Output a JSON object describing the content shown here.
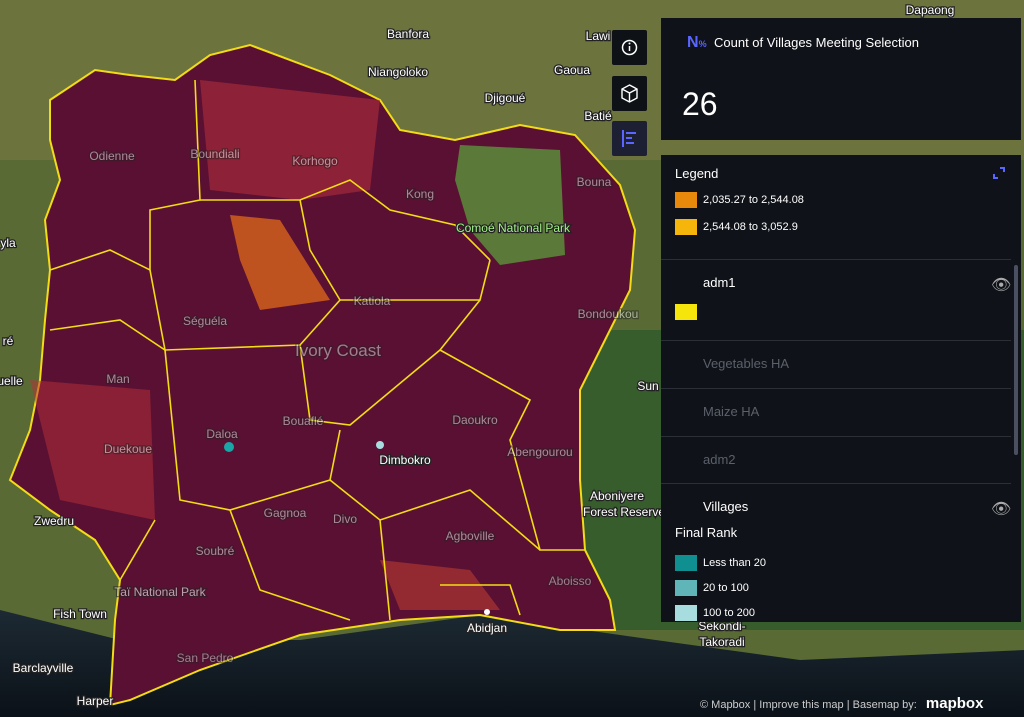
{
  "map": {
    "labels": [
      "Dapaong",
      "Banfora",
      "Lawi",
      "Niangoloko",
      "Gaoua",
      "Djigoué",
      "Batié",
      "Odienne",
      "Boundiali",
      "Korhogo",
      "Kong",
      "Bouna",
      "Comoé National Park",
      "Séguéla",
      "Katiola",
      "Bondoukou",
      "Ivory Coast",
      "Man",
      "Duekoue",
      "Daloa",
      "Bouaflé",
      "Dimbokro",
      "Daoukro",
      "Abengourou",
      "Sun",
      "Zwedru",
      "Soubré",
      "Gagnoa",
      "Divo",
      "Agboville",
      "Aboniyere",
      "Forest Reserve",
      "Taï National Park",
      "Fish Town",
      "Barclayville",
      "Harper",
      "San Pedro",
      "Abidjan",
      "Aboisso",
      "Sekondi-",
      "Takoradi",
      "yla",
      "ré",
      "uelle"
    ]
  },
  "selection_panel": {
    "icon_letter": "N",
    "icon_sub": "%",
    "title": "Count of Villages Meeting Selection",
    "value": 26
  },
  "legend": {
    "title": "Legend",
    "ranges": [
      "2,035.27 to 2,544.08",
      "2,544.08 to 3,052.9"
    ],
    "layers": [
      "adm1",
      "Vegetables HA",
      "Maize HA",
      "adm2",
      "Villages"
    ],
    "field": "Final Rank",
    "classes": [
      "Less than 20",
      "20 to 100",
      "100 to 200"
    ]
  },
  "attribution": {
    "mapbox": "© Mapbox",
    "improve": "Improve this map",
    "basemap": "Basemap by:",
    "logo": "mapbox"
  }
}
